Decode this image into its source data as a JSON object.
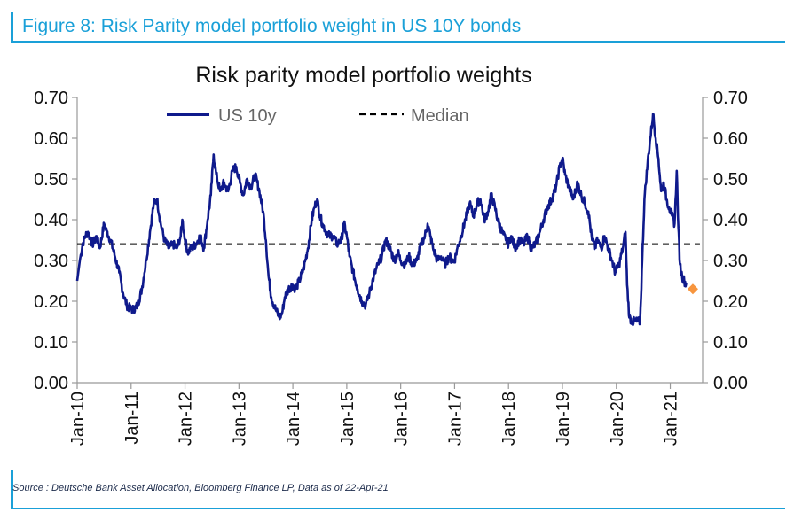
{
  "figure": {
    "heading": "Figure 8: Risk Parity model portfolio weight in US 10Y bonds",
    "source": "Source : Deutsche Bank Asset Allocation, Bloomberg Finance LP, Data as of 22-Apr-21"
  },
  "colors": {
    "accent": "#1aa0d8",
    "series": "#0f1a8c",
    "median": "#000000",
    "marker": "#f7953e",
    "axis": "#999999"
  },
  "chart_data": {
    "type": "line",
    "title": "Risk parity model portfolio weights",
    "xlabel": "",
    "ylabel": "",
    "ylim": [
      0,
      0.7
    ],
    "yticks": [
      "0.00",
      "0.10",
      "0.20",
      "0.30",
      "0.40",
      "0.50",
      "0.60",
      "0.70"
    ],
    "xlim": [
      2010.0,
      2021.6
    ],
    "xticks": [
      {
        "label": "Jan-10",
        "x": 2010.0
      },
      {
        "label": "Jan-11",
        "x": 2011.0
      },
      {
        "label": "Jan-12",
        "x": 2012.0
      },
      {
        "label": "Jan-13",
        "x": 2013.0
      },
      {
        "label": "Jan-14",
        "x": 2014.0
      },
      {
        "label": "Jan-15",
        "x": 2015.0
      },
      {
        "label": "Jan-16",
        "x": 2016.0
      },
      {
        "label": "Jan-17",
        "x": 2017.0
      },
      {
        "label": "Jan-18",
        "x": 2018.0
      },
      {
        "label": "Jan-19",
        "x": 2019.0
      },
      {
        "label": "Jan-20",
        "x": 2020.0
      },
      {
        "label": "Jan-21",
        "x": 2021.0
      }
    ],
    "grid": false,
    "legend_position": "top-left",
    "dual_y_axis": true,
    "series": [
      {
        "name": "US 10y",
        "points": [
          [
            2010.0,
            0.25
          ],
          [
            2010.05,
            0.3
          ],
          [
            2010.1,
            0.34
          ],
          [
            2010.15,
            0.36
          ],
          [
            2010.2,
            0.37
          ],
          [
            2010.25,
            0.35
          ],
          [
            2010.3,
            0.34
          ],
          [
            2010.35,
            0.36
          ],
          [
            2010.42,
            0.33
          ],
          [
            2010.5,
            0.39
          ],
          [
            2010.55,
            0.37
          ],
          [
            2010.62,
            0.35
          ],
          [
            2010.7,
            0.31
          ],
          [
            2010.78,
            0.27
          ],
          [
            2010.85,
            0.22
          ],
          [
            2010.92,
            0.19
          ],
          [
            2011.0,
            0.18
          ],
          [
            2011.05,
            0.18
          ],
          [
            2011.12,
            0.19
          ],
          [
            2011.2,
            0.23
          ],
          [
            2011.28,
            0.3
          ],
          [
            2011.35,
            0.37
          ],
          [
            2011.42,
            0.44
          ],
          [
            2011.48,
            0.45
          ],
          [
            2011.55,
            0.39
          ],
          [
            2011.62,
            0.35
          ],
          [
            2011.7,
            0.33
          ],
          [
            2011.78,
            0.34
          ],
          [
            2011.85,
            0.33
          ],
          [
            2011.92,
            0.36
          ],
          [
            2011.95,
            0.4
          ],
          [
            2012.0,
            0.35
          ],
          [
            2012.05,
            0.32
          ],
          [
            2012.12,
            0.33
          ],
          [
            2012.2,
            0.34
          ],
          [
            2012.28,
            0.36
          ],
          [
            2012.35,
            0.33
          ],
          [
            2012.42,
            0.4
          ],
          [
            2012.48,
            0.46
          ],
          [
            2012.53,
            0.56
          ],
          [
            2012.58,
            0.51
          ],
          [
            2012.65,
            0.47
          ],
          [
            2012.72,
            0.49
          ],
          [
            2012.8,
            0.47
          ],
          [
            2012.88,
            0.52
          ],
          [
            2012.95,
            0.53
          ],
          [
            2013.02,
            0.49
          ],
          [
            2013.08,
            0.46
          ],
          [
            2013.15,
            0.5
          ],
          [
            2013.22,
            0.48
          ],
          [
            2013.3,
            0.51
          ],
          [
            2013.38,
            0.47
          ],
          [
            2013.45,
            0.42
          ],
          [
            2013.5,
            0.35
          ],
          [
            2013.55,
            0.26
          ],
          [
            2013.6,
            0.21
          ],
          [
            2013.68,
            0.18
          ],
          [
            2013.75,
            0.16
          ],
          [
            2013.8,
            0.17
          ],
          [
            2013.85,
            0.21
          ],
          [
            2013.92,
            0.23
          ],
          [
            2014.0,
            0.24
          ],
          [
            2014.05,
            0.23
          ],
          [
            2014.12,
            0.25
          ],
          [
            2014.2,
            0.28
          ],
          [
            2014.28,
            0.33
          ],
          [
            2014.35,
            0.4
          ],
          [
            2014.4,
            0.43
          ],
          [
            2014.45,
            0.45
          ],
          [
            2014.5,
            0.41
          ],
          [
            2014.55,
            0.39
          ],
          [
            2014.62,
            0.37
          ],
          [
            2014.68,
            0.36
          ],
          [
            2014.75,
            0.36
          ],
          [
            2014.82,
            0.34
          ],
          [
            2014.9,
            0.35
          ],
          [
            2014.95,
            0.39
          ],
          [
            2015.0,
            0.36
          ],
          [
            2015.05,
            0.31
          ],
          [
            2015.12,
            0.27
          ],
          [
            2015.2,
            0.23
          ],
          [
            2015.28,
            0.2
          ],
          [
            2015.35,
            0.19
          ],
          [
            2015.42,
            0.22
          ],
          [
            2015.5,
            0.26
          ],
          [
            2015.58,
            0.29
          ],
          [
            2015.65,
            0.31
          ],
          [
            2015.72,
            0.35
          ],
          [
            2015.8,
            0.33
          ],
          [
            2015.88,
            0.3
          ],
          [
            2015.95,
            0.32
          ],
          [
            2016.0,
            0.3
          ],
          [
            2016.08,
            0.29
          ],
          [
            2016.15,
            0.31
          ],
          [
            2016.22,
            0.29
          ],
          [
            2016.3,
            0.3
          ],
          [
            2016.38,
            0.34
          ],
          [
            2016.45,
            0.36
          ],
          [
            2016.5,
            0.39
          ],
          [
            2016.55,
            0.36
          ],
          [
            2016.6,
            0.33
          ],
          [
            2016.68,
            0.3
          ],
          [
            2016.75,
            0.31
          ],
          [
            2016.82,
            0.29
          ],
          [
            2016.9,
            0.31
          ],
          [
            2016.95,
            0.3
          ],
          [
            2017.0,
            0.3
          ],
          [
            2017.05,
            0.33
          ],
          [
            2017.12,
            0.36
          ],
          [
            2017.2,
            0.4
          ],
          [
            2017.28,
            0.44
          ],
          [
            2017.35,
            0.41
          ],
          [
            2017.42,
            0.44
          ],
          [
            2017.48,
            0.45
          ],
          [
            2017.55,
            0.4
          ],
          [
            2017.62,
            0.42
          ],
          [
            2017.68,
            0.46
          ],
          [
            2017.75,
            0.43
          ],
          [
            2017.8,
            0.4
          ],
          [
            2017.88,
            0.37
          ],
          [
            2017.95,
            0.35
          ],
          [
            2018.0,
            0.34
          ],
          [
            2018.05,
            0.36
          ],
          [
            2018.12,
            0.33
          ],
          [
            2018.2,
            0.35
          ],
          [
            2018.28,
            0.34
          ],
          [
            2018.35,
            0.36
          ],
          [
            2018.42,
            0.33
          ],
          [
            2018.5,
            0.34
          ],
          [
            2018.58,
            0.37
          ],
          [
            2018.65,
            0.4
          ],
          [
            2018.72,
            0.43
          ],
          [
            2018.8,
            0.45
          ],
          [
            2018.88,
            0.48
          ],
          [
            2018.95,
            0.53
          ],
          [
            2019.0,
            0.55
          ],
          [
            2019.05,
            0.51
          ],
          [
            2019.12,
            0.48
          ],
          [
            2019.2,
            0.45
          ],
          [
            2019.28,
            0.49
          ],
          [
            2019.35,
            0.46
          ],
          [
            2019.42,
            0.44
          ],
          [
            2019.48,
            0.42
          ],
          [
            2019.55,
            0.35
          ],
          [
            2019.6,
            0.33
          ],
          [
            2019.65,
            0.35
          ],
          [
            2019.72,
            0.33
          ],
          [
            2019.78,
            0.36
          ],
          [
            2019.85,
            0.33
          ],
          [
            2019.92,
            0.3
          ],
          [
            2019.98,
            0.27
          ],
          [
            2020.05,
            0.29
          ],
          [
            2020.12,
            0.33
          ],
          [
            2020.17,
            0.37
          ],
          [
            2020.2,
            0.24
          ],
          [
            2020.24,
            0.16
          ],
          [
            2020.3,
            0.15
          ],
          [
            2020.38,
            0.15
          ],
          [
            2020.44,
            0.15
          ],
          [
            2020.48,
            0.3
          ],
          [
            2020.52,
            0.45
          ],
          [
            2020.58,
            0.54
          ],
          [
            2020.63,
            0.6
          ],
          [
            2020.68,
            0.66
          ],
          [
            2020.73,
            0.6
          ],
          [
            2020.78,
            0.55
          ],
          [
            2020.83,
            0.47
          ],
          [
            2020.88,
            0.49
          ],
          [
            2020.93,
            0.45
          ],
          [
            2020.98,
            0.43
          ],
          [
            2021.03,
            0.41
          ],
          [
            2021.08,
            0.39
          ],
          [
            2021.12,
            0.52
          ],
          [
            2021.15,
            0.38
          ],
          [
            2021.18,
            0.29
          ],
          [
            2021.22,
            0.26
          ],
          [
            2021.26,
            0.25
          ],
          [
            2021.3,
            0.24
          ]
        ]
      },
      {
        "name": "Median",
        "value": 0.34
      }
    ],
    "latest_point": {
      "x": 2021.32,
      "y": 0.23
    }
  }
}
